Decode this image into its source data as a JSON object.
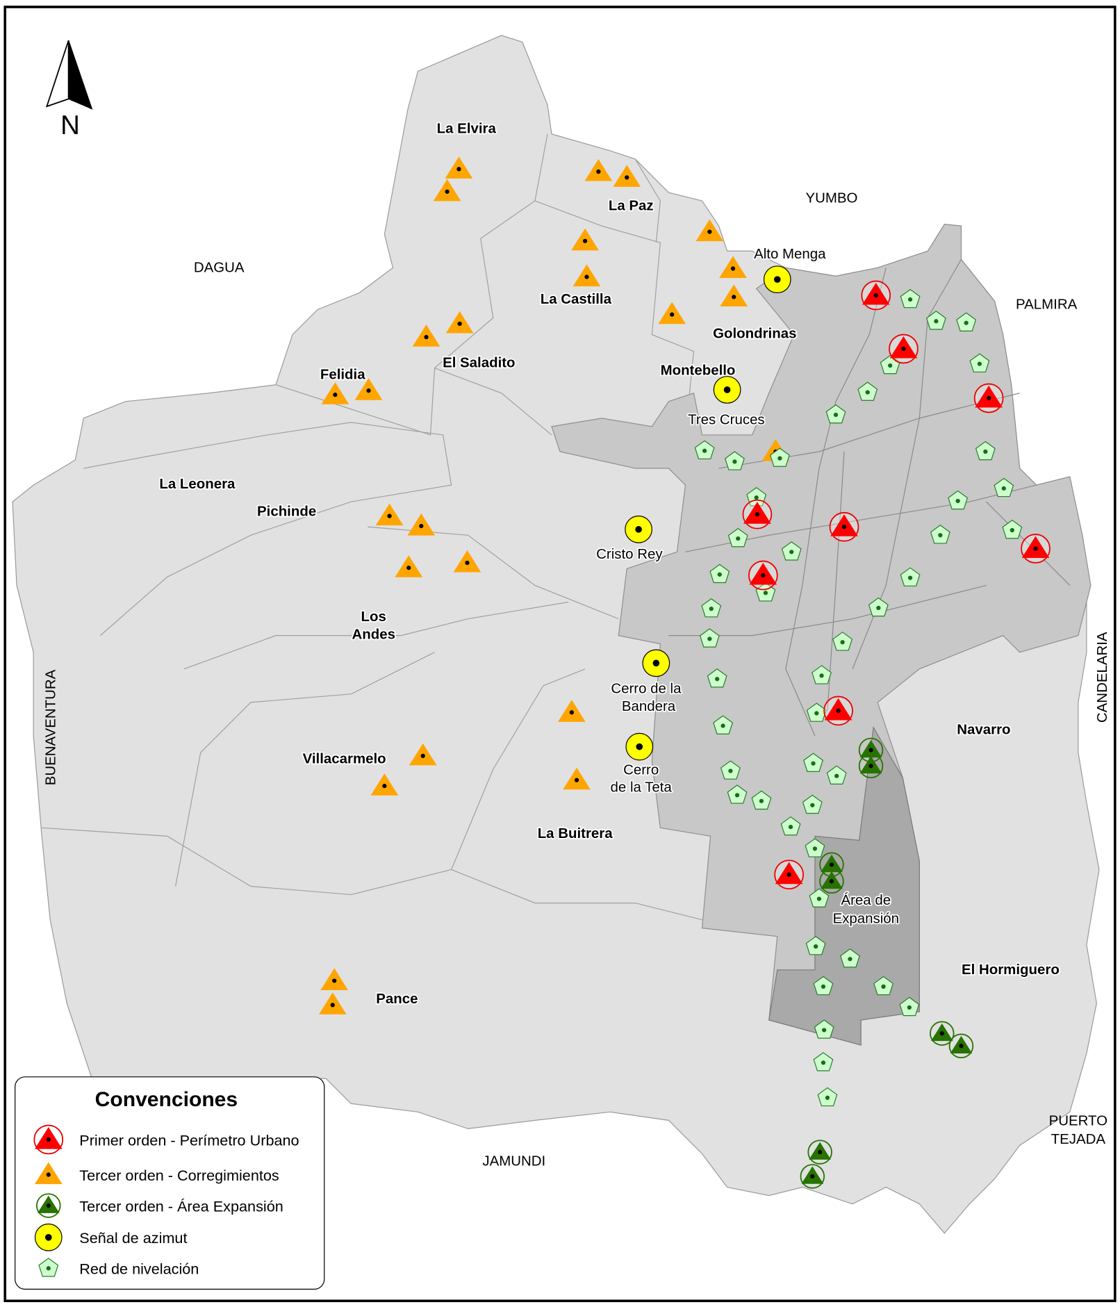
{
  "north_arrow": {
    "label": "N"
  },
  "neighbors": {
    "yumbo": "YUMBO",
    "dagua": "DAGUA",
    "palmira": "PALMIRA",
    "buenaventura": "BUENAVENTURA",
    "candelaria": "CANDELARIA",
    "jamundi": "JAMUNDI",
    "puerto_tejada_1": "PUERTO",
    "puerto_tejada_2": "TEJADA"
  },
  "corregimientos": {
    "la_elvira": "La Elvira",
    "la_paz": "La Paz",
    "la_castilla": "La Castilla",
    "golondrinas": "Golondrinas",
    "montebello": "Montebello",
    "el_saladito": "El Saladito",
    "felidia": "Felidia",
    "la_leonera": "La Leonera",
    "pichinde": "Pichinde",
    "los_andes_1": "Los",
    "los_andes_2": "Andes",
    "villacarmelo": "Villacarmelo",
    "la_buitrera": "La Buitrera",
    "pance": "Pance",
    "navarro": "Navarro",
    "el_hormiguero": "El Hormiguero"
  },
  "places": {
    "alto_menga": "Alto Menga",
    "tres_cruces": "Tres Cruces",
    "cristo_rey": "Cristo Rey",
    "cerro_bandera_1": "Cerro de la",
    "cerro_bandera_2": "Bandera",
    "cerro_teta_1": "Cerro",
    "cerro_teta_2": "de la Teta",
    "area_expansion_1": "Área de",
    "area_expansion_2": "Expansión"
  },
  "legend": {
    "title": "Convenciones",
    "items": [
      {
        "label": "Primer orden - Perímetro Urbano",
        "icon": "red-triangle-circle-icon",
        "color": "#ff0000"
      },
      {
        "label": "Tercer orden - Corregimientos",
        "icon": "orange-triangle-icon",
        "color": "#ffa500"
      },
      {
        "label": "Tercer orden - Área Expansión",
        "icon": "green-triangle-circle-icon",
        "color": "#267300"
      },
      {
        "label": "Señal de azimut",
        "icon": "yellow-circle-icon",
        "color": "#ffff00"
      },
      {
        "label": "Red de nivelación",
        "icon": "pentagon-icon",
        "color": "#ccffcc"
      }
    ]
  },
  "colors": {
    "rural": "#e1e1e1",
    "urban": "#c8c8c8",
    "expansion": "#a9a9a9",
    "boundary": "#9a9a9a"
  }
}
